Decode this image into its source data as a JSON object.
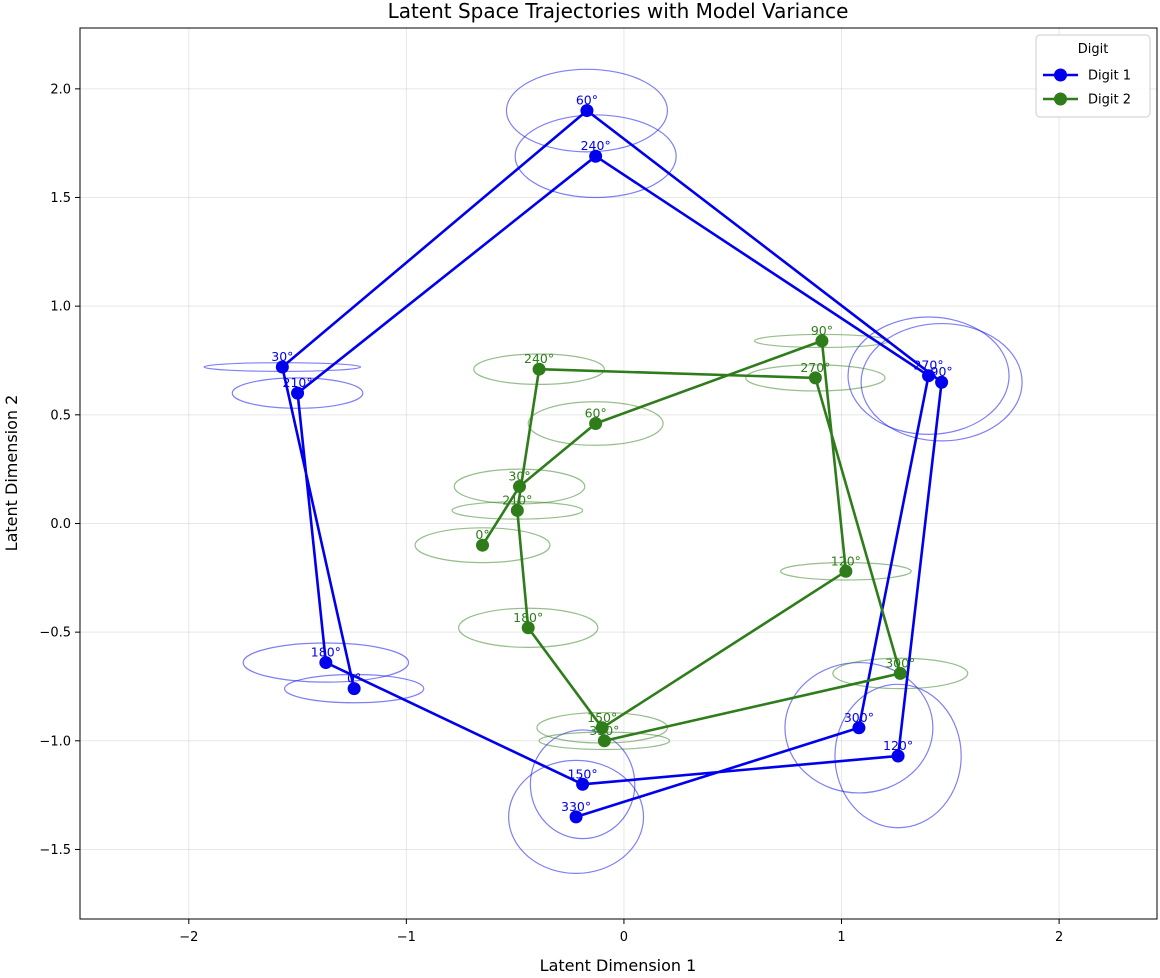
{
  "chart_data": {
    "type": "line",
    "title": "Latent Space Trajectories with Model Variance",
    "xlabel": "Latent Dimension 1",
    "ylabel": "Latent Dimension 2",
    "xlim": [
      -2.5,
      2.45
    ],
    "ylim": [
      -1.82,
      2.28
    ],
    "xticks": [
      -2,
      -1,
      0,
      1,
      2
    ],
    "xtick_labels": [
      "−2",
      "−1",
      "0",
      "1",
      "2"
    ],
    "yticks": [
      -1.5,
      -1.0,
      -0.5,
      0.0,
      0.5,
      1.0,
      1.5,
      2.0
    ],
    "ytick_labels": [
      "−1.5",
      "−1.0",
      "−0.5",
      "0.0",
      "0.5",
      "1.0",
      "1.5",
      "2.0"
    ],
    "grid": true,
    "legend": {
      "title": "Digit",
      "placement": "top-right"
    },
    "series": [
      {
        "name": "Digit 1",
        "color": "#0000ee",
        "points": [
          {
            "label": "0°",
            "x": -1.24,
            "y": -0.76,
            "rx": 0.32,
            "ry": 0.065
          },
          {
            "label": "30°",
            "x": -1.57,
            "y": 0.72,
            "rx": 0.36,
            "ry": 0.02
          },
          {
            "label": "60°",
            "x": -0.17,
            "y": 1.9,
            "rx": 0.37,
            "ry": 0.19
          },
          {
            "label": "90°",
            "x": 1.46,
            "y": 0.65,
            "rx": 0.37,
            "ry": 0.27
          },
          {
            "label": "120°",
            "x": 1.26,
            "y": -1.07,
            "rx": 0.29,
            "ry": 0.33
          },
          {
            "label": "150°",
            "x": -0.19,
            "y": -1.2,
            "rx": 0.24,
            "ry": 0.25
          },
          {
            "label": "180°",
            "x": -1.37,
            "y": -0.64,
            "rx": 0.38,
            "ry": 0.09
          },
          {
            "label": "210°",
            "x": -1.5,
            "y": 0.6,
            "rx": 0.3,
            "ry": 0.07
          },
          {
            "label": "240°",
            "x": -0.13,
            "y": 1.69,
            "rx": 0.37,
            "ry": 0.19
          },
          {
            "label": "270°",
            "x": 1.4,
            "y": 0.68,
            "rx": 0.37,
            "ry": 0.27
          },
          {
            "label": "300°",
            "x": 1.08,
            "y": -0.94,
            "rx": 0.34,
            "ry": 0.3
          },
          {
            "label": "330°",
            "x": -0.22,
            "y": -1.35,
            "rx": 0.31,
            "ry": 0.26
          }
        ]
      },
      {
        "name": "Digit 2",
        "color": "#2e7d1a",
        "points": [
          {
            "label": "0°",
            "x": -0.65,
            "y": -0.1,
            "rx": 0.31,
            "ry": 0.08
          },
          {
            "label": "30°",
            "x": -0.48,
            "y": 0.17,
            "rx": 0.3,
            "ry": 0.08
          },
          {
            "label": "60°",
            "x": -0.13,
            "y": 0.46,
            "rx": 0.31,
            "ry": 0.1
          },
          {
            "label": "90°",
            "x": 0.91,
            "y": 0.84,
            "rx": 0.31,
            "ry": 0.03
          },
          {
            "label": "120°",
            "x": 1.02,
            "y": -0.22,
            "rx": 0.3,
            "ry": 0.04
          },
          {
            "label": "150°",
            "x": -0.1,
            "y": -0.94,
            "rx": 0.3,
            "ry": 0.07
          },
          {
            "label": "180°",
            "x": -0.44,
            "y": -0.48,
            "rx": 0.32,
            "ry": 0.09
          },
          {
            "label": "210°",
            "x": -0.49,
            "y": 0.06,
            "rx": 0.3,
            "ry": 0.04
          },
          {
            "label": "240°",
            "x": -0.39,
            "y": 0.71,
            "rx": 0.3,
            "ry": 0.07
          },
          {
            "label": "270°",
            "x": 0.88,
            "y": 0.67,
            "rx": 0.32,
            "ry": 0.06
          },
          {
            "label": "300°",
            "x": 1.27,
            "y": -0.69,
            "rx": 0.31,
            "ry": 0.07
          },
          {
            "label": "330°",
            "x": -0.09,
            "y": -1.0,
            "rx": 0.3,
            "ry": 0.04
          }
        ]
      }
    ]
  }
}
